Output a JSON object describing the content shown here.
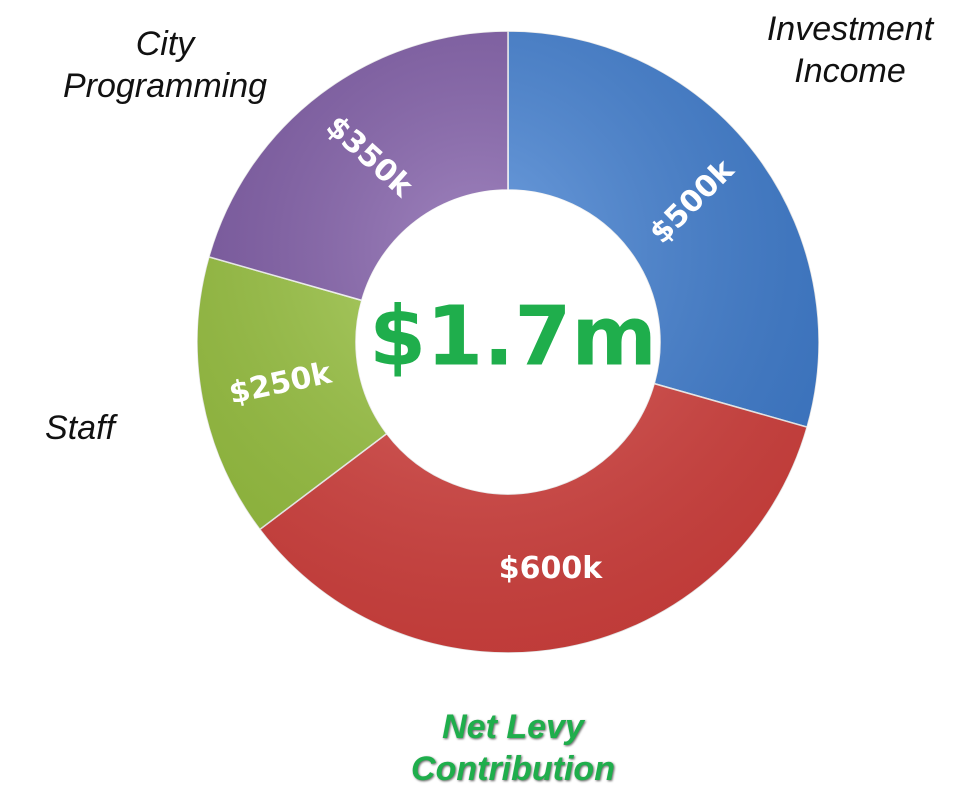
{
  "chart_data": {
    "type": "pie",
    "donut": true,
    "categories": [
      "Investment Income",
      "Net Levy Contribution",
      "Staff",
      "City Programming"
    ],
    "values": [
      500,
      600,
      250,
      350
    ],
    "value_labels": [
      "$500k",
      "$600k",
      "$250k",
      "$350k"
    ],
    "colors": [
      "#3f7fd4",
      "#d9423f",
      "#9bc63f",
      "#7f5aa8"
    ],
    "center_label": "$1.7m"
  }
}
